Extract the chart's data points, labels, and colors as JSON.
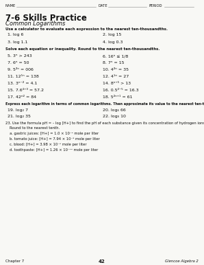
{
  "bg_color": "#f8f8f5",
  "text_color": "#111111",
  "title": "7-6 Skills Practice",
  "subtitle": "Common Logarithms",
  "section1_intro": "Use a calculator to evaluate each expression to the nearest ten-thousandths.",
  "section2_intro": "Solve each equation or inequality. Round to the nearest ten-thousandths.",
  "section3_intro": "Express each logarithm in terms of common logarithms. Then approximate its value to the nearest ten-thousandths.",
  "footer_left": "Chapter 7",
  "footer_center": "42",
  "footer_right": "Glencoe Algebra 2"
}
